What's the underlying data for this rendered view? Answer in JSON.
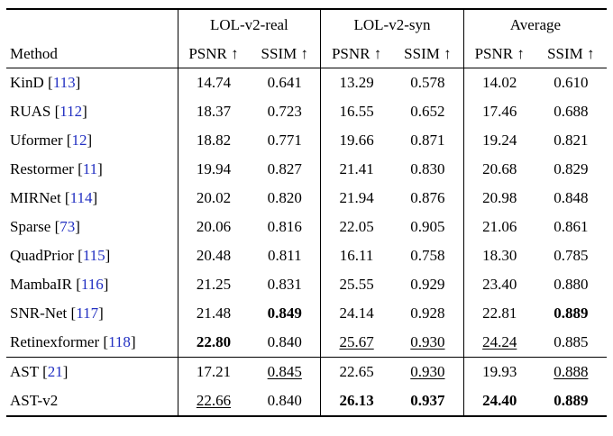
{
  "table": {
    "method_header": "Method",
    "citation_color": "#2230c2",
    "groups": [
      {
        "label": "LOL-v2-real"
      },
      {
        "label": "LOL-v2-syn"
      },
      {
        "label": "Average"
      }
    ],
    "psnr_label": "PSNR ↑",
    "ssim_label": "SSIM ↑",
    "rows": [
      {
        "method": "KinD",
        "cite": "113",
        "cells": [
          {
            "v": "14.74"
          },
          {
            "v": "0.641"
          },
          {
            "v": "13.29"
          },
          {
            "v": "0.578"
          },
          {
            "v": "14.02"
          },
          {
            "v": "0.610"
          }
        ]
      },
      {
        "method": "RUAS",
        "cite": "112",
        "cells": [
          {
            "v": "18.37"
          },
          {
            "v": "0.723"
          },
          {
            "v": "16.55"
          },
          {
            "v": "0.652"
          },
          {
            "v": "17.46"
          },
          {
            "v": "0.688"
          }
        ]
      },
      {
        "method": "Uformer",
        "cite": "12",
        "cells": [
          {
            "v": "18.82"
          },
          {
            "v": "0.771"
          },
          {
            "v": "19.66"
          },
          {
            "v": "0.871"
          },
          {
            "v": "19.24"
          },
          {
            "v": "0.821"
          }
        ]
      },
      {
        "method": "Restormer",
        "cite": "11",
        "cells": [
          {
            "v": "19.94"
          },
          {
            "v": "0.827"
          },
          {
            "v": "21.41"
          },
          {
            "v": "0.830"
          },
          {
            "v": "20.68"
          },
          {
            "v": "0.829"
          }
        ]
      },
      {
        "method": "MIRNet",
        "cite": "114",
        "cells": [
          {
            "v": "20.02"
          },
          {
            "v": "0.820"
          },
          {
            "v": "21.94"
          },
          {
            "v": "0.876"
          },
          {
            "v": "20.98"
          },
          {
            "v": "0.848"
          }
        ]
      },
      {
        "method": "Sparse",
        "cite": "73",
        "cells": [
          {
            "v": "20.06"
          },
          {
            "v": "0.816"
          },
          {
            "v": "22.05"
          },
          {
            "v": "0.905"
          },
          {
            "v": "21.06"
          },
          {
            "v": "0.861"
          }
        ]
      },
      {
        "method": "QuadPrior",
        "cite": "115",
        "cells": [
          {
            "v": "20.48"
          },
          {
            "v": "0.811"
          },
          {
            "v": "16.11"
          },
          {
            "v": "0.758"
          },
          {
            "v": "18.30"
          },
          {
            "v": "0.785"
          }
        ]
      },
      {
        "method": "MambaIR",
        "cite": "116",
        "cells": [
          {
            "v": "21.25"
          },
          {
            "v": "0.831"
          },
          {
            "v": "25.55"
          },
          {
            "v": "0.929"
          },
          {
            "v": "23.40"
          },
          {
            "v": "0.880"
          }
        ]
      },
      {
        "method": "SNR-Net",
        "cite": "117",
        "cells": [
          {
            "v": "21.48"
          },
          {
            "v": "0.849",
            "b": true
          },
          {
            "v": "24.14"
          },
          {
            "v": "0.928"
          },
          {
            "v": "22.81"
          },
          {
            "v": "0.889",
            "b": true
          }
        ]
      },
      {
        "method": "Retinexformer",
        "cite": "118",
        "cells": [
          {
            "v": "22.80",
            "b": true
          },
          {
            "v": "0.840"
          },
          {
            "v": "25.67",
            "u": true
          },
          {
            "v": "0.930",
            "u": true
          },
          {
            "v": "24.24",
            "u": true
          },
          {
            "v": "0.885"
          }
        ]
      },
      {
        "method": "AST",
        "cite": "21",
        "section_start": true,
        "cells": [
          {
            "v": "17.21"
          },
          {
            "v": "0.845",
            "u": true
          },
          {
            "v": "22.65"
          },
          {
            "v": "0.930",
            "u": true
          },
          {
            "v": "19.93"
          },
          {
            "v": "0.888",
            "u": true
          }
        ]
      },
      {
        "method": "AST-v2",
        "cite": null,
        "cells": [
          {
            "v": "22.66",
            "u": true
          },
          {
            "v": "0.840"
          },
          {
            "v": "26.13",
            "b": true
          },
          {
            "v": "0.937",
            "b": true
          },
          {
            "v": "24.40",
            "b": true
          },
          {
            "v": "0.889",
            "b": true
          }
        ]
      }
    ]
  }
}
